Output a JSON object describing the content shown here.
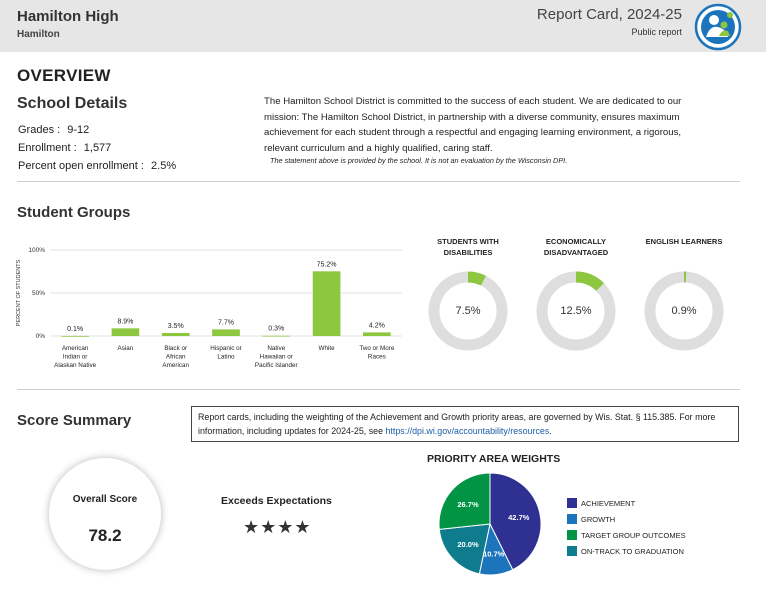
{
  "header": {
    "school": "Hamilton High",
    "district": "Hamilton",
    "report_title": "Report Card, 2024-25",
    "report_type": "Public report"
  },
  "overview": {
    "title": "OVERVIEW",
    "school_details": {
      "title": "School Details",
      "grades_label": "Grades :",
      "grades_value": "9-12",
      "enrollment_label": "Enrollment :",
      "enrollment_value": "1,577",
      "open_label": "Percent open enrollment :",
      "open_value": "2.5%"
    },
    "mission": "The Hamilton School District is committed to the success of each student. We are dedicated to our mission: The Hamilton School District, in partnership with a diverse community, ensures maximum achievement for each student through a respectful and engaging learning environment, a rigorous, relevant curriculum and a highly qualified, caring staff.",
    "mission_note": "The statement above is provided by the school. It is not an evaluation by the Wisconsin DPI."
  },
  "student_groups": {
    "title": "Student Groups",
    "donuts": [
      {
        "title": "STUDENTS WITH DISABILITIES",
        "value_label": "7.5%"
      },
      {
        "title": "ECONOMICALLY DISADVANTAGED",
        "value_label": "12.5%"
      },
      {
        "title": "ENGLISH LEARNERS",
        "value_label": "0.9%"
      }
    ]
  },
  "score_summary": {
    "title": "Score Summary",
    "note_text": "Report cards, including the weighting of the Achievement and Growth priority areas, are governed by Wis. Stat. § 115.385. For more information, including updates for 2024-25, see ",
    "note_link": "https://dpi.wi.gov/accountability/resources",
    "note_end": ".",
    "overall_label": "Overall Score",
    "overall_value": "78.2",
    "rating": "Exceeds Expectations",
    "stars": "★★★★",
    "weights_title": "PRIORITY AREA WEIGHTS"
  },
  "colors": {
    "bar_green": "#8dc63f",
    "donut_track": "#dedede",
    "achievement": "#2e3192",
    "growth": "#1c75bc",
    "target_group": "#009444",
    "on_track": "#0e7c8c"
  },
  "chart_data": [
    {
      "type": "bar",
      "ylabel": "PERCENT OF STUDENTS",
      "ylim": [
        0,
        100
      ],
      "yticks": [
        "0%",
        "50%",
        "100%"
      ],
      "categories": [
        [
          "American",
          "Indian or",
          "Alaskan Native"
        ],
        [
          "Asian"
        ],
        [
          "Black or",
          "African",
          "American"
        ],
        [
          "Hispanic or",
          "Latino"
        ],
        [
          "Native",
          "Hawaiian or",
          "Pacific Islander"
        ],
        [
          "White"
        ],
        [
          "Two or More",
          "Races"
        ]
      ],
      "values": [
        0.1,
        8.9,
        3.5,
        7.7,
        0.3,
        75.2,
        4.2
      ],
      "value_labels": [
        "0.1%",
        "8.9%",
        "3.5%",
        "7.7%",
        "0.3%",
        "75.2%",
        "4.2%"
      ]
    },
    {
      "type": "pie",
      "title": "STUDENTS WITH DISABILITIES",
      "values": [
        7.5,
        92.5
      ]
    },
    {
      "type": "pie",
      "title": "ECONOMICALLY DISADVANTAGED",
      "values": [
        12.5,
        87.5
      ]
    },
    {
      "type": "pie",
      "title": "ENGLISH LEARNERS",
      "values": [
        0.9,
        99.1
      ]
    },
    {
      "type": "pie",
      "title": "PRIORITY AREA WEIGHTS",
      "categories": [
        "ACHIEVEMENT",
        "GROWTH",
        "TARGET GROUP OUTCOMES",
        "ON-TRACK TO GRADUATION"
      ],
      "values": [
        42.7,
        10.7,
        26.7,
        20.0
      ],
      "value_labels": [
        "42.7%",
        "10.7%",
        "26.7%",
        "20.0%"
      ]
    }
  ]
}
